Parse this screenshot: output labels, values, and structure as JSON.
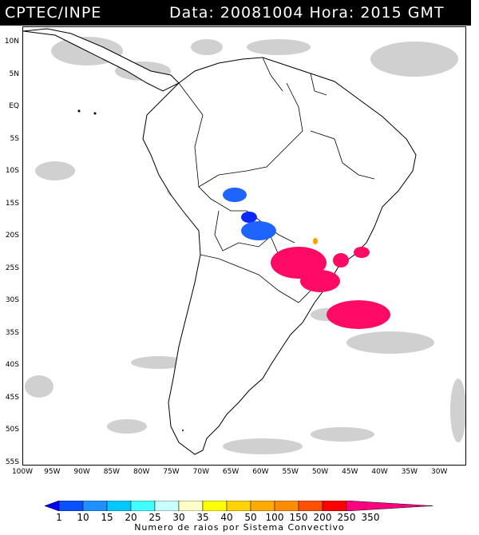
{
  "header": {
    "source": "CPTEC/INPE",
    "datetime": "Data: 20081004 Hora: 2015 GMT"
  },
  "map": {
    "lat_labels": [
      "10N",
      "5N",
      "EQ",
      "5S",
      "10S",
      "15S",
      "20S",
      "25S",
      "30S",
      "35S",
      "40S",
      "45S",
      "50S",
      "55S"
    ],
    "lon_labels": [
      "100W",
      "95W",
      "90W",
      "85W",
      "80W",
      "75W",
      "70W",
      "65W",
      "60W",
      "55W",
      "50W",
      "45W",
      "40W",
      "35W",
      "30W"
    ]
  },
  "legend": {
    "labels": [
      "1",
      "10",
      "15",
      "20",
      "25",
      "30",
      "35",
      "40",
      "50",
      "100",
      "150",
      "200",
      "250",
      "350"
    ],
    "colors": [
      "#0000ff",
      "#0a50ff",
      "#1e90ff",
      "#00c8ff",
      "#40ffff",
      "#c8ffff",
      "#ffffc8",
      "#ffff00",
      "#ffd200",
      "#ffaa00",
      "#ff8c00",
      "#ff5000",
      "#ff0000",
      "#ff007f"
    ],
    "caption": "Numero de raios por Sistema Convectivo"
  },
  "colors": {
    "cloud": "#c8c8c8",
    "blue_system": "#1e64ff",
    "pink_system": "#ff0a64",
    "orange_system": "#ffa000"
  }
}
